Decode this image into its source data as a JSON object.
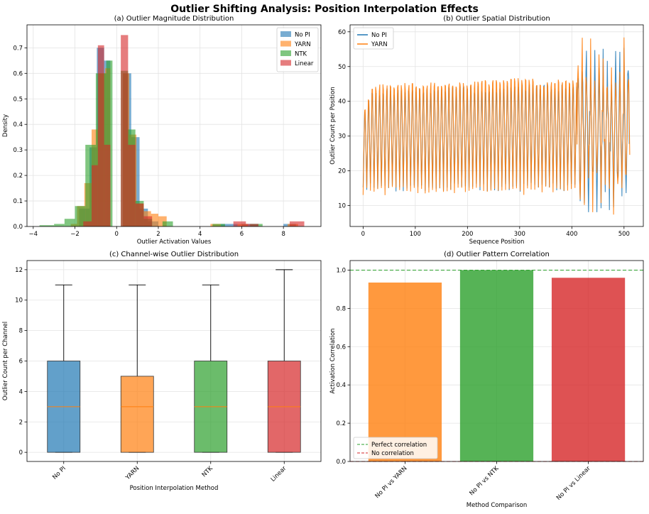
{
  "figure": {
    "suptitle": "Outlier Shifting Analysis: Position Interpolation Effects",
    "colors": {
      "no_pi": "#1f77b4",
      "yarn": "#ff7f0e",
      "ntk": "#2ca02c",
      "linear": "#d62728",
      "median": "#ff7f0e"
    }
  },
  "chart_data": [
    {
      "id": "a",
      "type": "bar",
      "subtype": "histogram",
      "title": "(a) Outlier Magnitude Distribution",
      "xlabel": "Outlier Activation Values",
      "ylabel": "Density",
      "xlim": [
        -4.3,
        9.8
      ],
      "ylim": [
        0,
        0.79
      ],
      "xticks": [
        -4,
        -2,
        0,
        2,
        4,
        6,
        8
      ],
      "xtick_labels": [
        "−4",
        "−2",
        "0",
        "2",
        "4",
        "6",
        "8"
      ],
      "yticks": [
        0,
        0.1,
        0.2,
        0.3,
        0.4,
        0.5,
        0.6,
        0.7
      ],
      "ytick_labels": [
        "0.0",
        "0.1",
        "0.2",
        "0.3",
        "0.4",
        "0.5",
        "0.6",
        "0.7"
      ],
      "grid": true,
      "legend": {
        "position": "top-right",
        "entries": [
          "No PI",
          "YARN",
          "NTK",
          "Linear"
        ]
      },
      "series": [
        {
          "name": "No PI",
          "key": "no_pi",
          "bins": [
            [
              -1.8,
              -1.3,
              0.07
            ],
            [
              -1.3,
              -0.95,
              0.31
            ],
            [
              -0.95,
              -0.6,
              0.7
            ],
            [
              -0.6,
              -0.3,
              0.65
            ],
            [
              0.3,
              0.7,
              0.6
            ],
            [
              0.7,
              1.1,
              0.35
            ],
            [
              1.1,
              1.5,
              0.07
            ],
            [
              1.5,
              2.0,
              0.02
            ],
            [
              5.0,
              5.8,
              0.01
            ],
            [
              6.0,
              6.8,
              0.01
            ],
            [
              8.0,
              8.6,
              0.01
            ]
          ]
        },
        {
          "name": "YARN",
          "key": "yarn",
          "bins": [
            [
              -2.2,
              -1.9,
              0.01
            ],
            [
              -1.9,
              -1.55,
              0.08
            ],
            [
              -1.55,
              -1.2,
              0.17
            ],
            [
              -1.2,
              -0.85,
              0.38
            ],
            [
              -0.85,
              -0.55,
              0.6
            ],
            [
              -0.55,
              -0.3,
              0.62
            ],
            [
              0.3,
              0.6,
              0.6
            ],
            [
              0.6,
              0.95,
              0.36
            ],
            [
              0.95,
              1.3,
              0.09
            ],
            [
              1.3,
              1.65,
              0.06
            ],
            [
              1.65,
              2.0,
              0.05
            ],
            [
              2.0,
              2.4,
              0.04
            ],
            [
              4.5,
              5.0,
              0.01
            ],
            [
              5.8,
              6.3,
              0.01
            ],
            [
              8.2,
              8.7,
              0.01
            ]
          ]
        },
        {
          "name": "NTK",
          "key": "ntk",
          "bins": [
            [
              -3.7,
              -3.0,
              0.005
            ],
            [
              -3.0,
              -2.5,
              0.01
            ],
            [
              -2.5,
              -2.0,
              0.03
            ],
            [
              -2.0,
              -1.5,
              0.08
            ],
            [
              -1.5,
              -1.0,
              0.32
            ],
            [
              -1.0,
              -0.5,
              0.6
            ],
            [
              -0.5,
              -0.2,
              0.65
            ],
            [
              0.2,
              0.55,
              0.61
            ],
            [
              0.55,
              0.9,
              0.38
            ],
            [
              0.9,
              1.3,
              0.1
            ],
            [
              1.3,
              1.7,
              0.03
            ],
            [
              2.2,
              2.7,
              0.02
            ],
            [
              4.6,
              5.2,
              0.01
            ],
            [
              6.4,
              7.0,
              0.01
            ]
          ]
        },
        {
          "name": "Linear",
          "key": "linear",
          "bins": [
            [
              -1.6,
              -1.2,
              0.02
            ],
            [
              -1.2,
              -0.9,
              0.24
            ],
            [
              -0.9,
              -0.6,
              0.71
            ],
            [
              -0.6,
              -0.3,
              0.32
            ],
            [
              0.2,
              0.55,
              0.75
            ],
            [
              0.55,
              0.9,
              0.32
            ],
            [
              0.9,
              1.3,
              0.09
            ],
            [
              1.3,
              1.7,
              0.04
            ],
            [
              5.6,
              6.2,
              0.02
            ],
            [
              6.2,
              6.8,
              0.01
            ],
            [
              8.3,
              9.0,
              0.02
            ]
          ]
        }
      ]
    },
    {
      "id": "b",
      "type": "line",
      "title": "(b) Outlier Spatial Distribution",
      "xlabel": "Sequence Position",
      "ylabel": "Outlier Count per Position",
      "xlim": [
        -25,
        537
      ],
      "ylim": [
        4,
        62
      ],
      "xticks": [
        0,
        100,
        200,
        300,
        400,
        500
      ],
      "yticks": [
        10,
        20,
        30,
        40,
        50,
        60
      ],
      "grid": true,
      "legend": {
        "position": "top-left",
        "entries": [
          "No PI",
          "YARN"
        ]
      },
      "series": [
        {
          "name": "No PI",
          "key": "no_pi",
          "length": 512,
          "pattern": "oscillating ~7-position period; low 14-16, high 46-48 for positions < 410; irregular 6-58 after 410"
        },
        {
          "name": "YARN",
          "key": "yarn",
          "length": 512,
          "pattern": "oscillating ~7-position period; low 12-16, high 46-50 for positions < 410; irregular 6-60 after 410"
        }
      ]
    },
    {
      "id": "c",
      "type": "bar",
      "subtype": "boxplot",
      "title": "(c) Channel-wise Outlier Distribution",
      "xlabel": "Position Interpolation Method",
      "ylabel": "Outlier Count per Channel",
      "ylim": [
        -0.6,
        12.6
      ],
      "yticks": [
        0,
        2,
        4,
        6,
        8,
        10,
        12
      ],
      "categories": [
        "No PI",
        "YARN",
        "NTK",
        "Linear"
      ],
      "grid": true,
      "boxes": [
        {
          "name": "No PI",
          "key": "no_pi",
          "min": 0,
          "q1": 0,
          "median": 3,
          "q3": 6,
          "max": 11
        },
        {
          "name": "YARN",
          "key": "yarn",
          "min": 0,
          "q1": 0,
          "median": 3,
          "q3": 5,
          "max": 11
        },
        {
          "name": "NTK",
          "key": "ntk",
          "min": 0,
          "q1": 0,
          "median": 3,
          "q3": 6,
          "max": 11
        },
        {
          "name": "Linear",
          "key": "linear",
          "min": 0,
          "q1": 0,
          "median": 3,
          "q3": 6,
          "max": 12
        }
      ]
    },
    {
      "id": "d",
      "type": "bar",
      "title": "(d) Outlier Pattern Correlation",
      "xlabel": "Method Comparison",
      "ylabel": "Activation Correlation",
      "ylim": [
        0,
        1.05
      ],
      "yticks": [
        0,
        0.2,
        0.4,
        0.6,
        0.8,
        1.0
      ],
      "ytick_labels": [
        "0.0",
        "0.2",
        "0.4",
        "0.6",
        "0.8",
        "1.0"
      ],
      "categories": [
        "No PI vs YARN",
        "No PI vs NTK",
        "No PI vs Linear"
      ],
      "values": [
        0.935,
        1.0,
        0.96
      ],
      "bar_keys": [
        "yarn",
        "ntk",
        "linear"
      ],
      "reference_lines": [
        {
          "label": "Perfect correlation",
          "y": 1.0,
          "key": "ntk"
        },
        {
          "label": "No correlation",
          "y": 0.0,
          "key": "linear"
        }
      ],
      "grid": true,
      "legend": {
        "position": "bottom-left",
        "entries": [
          "Perfect correlation",
          "No correlation"
        ]
      }
    }
  ]
}
